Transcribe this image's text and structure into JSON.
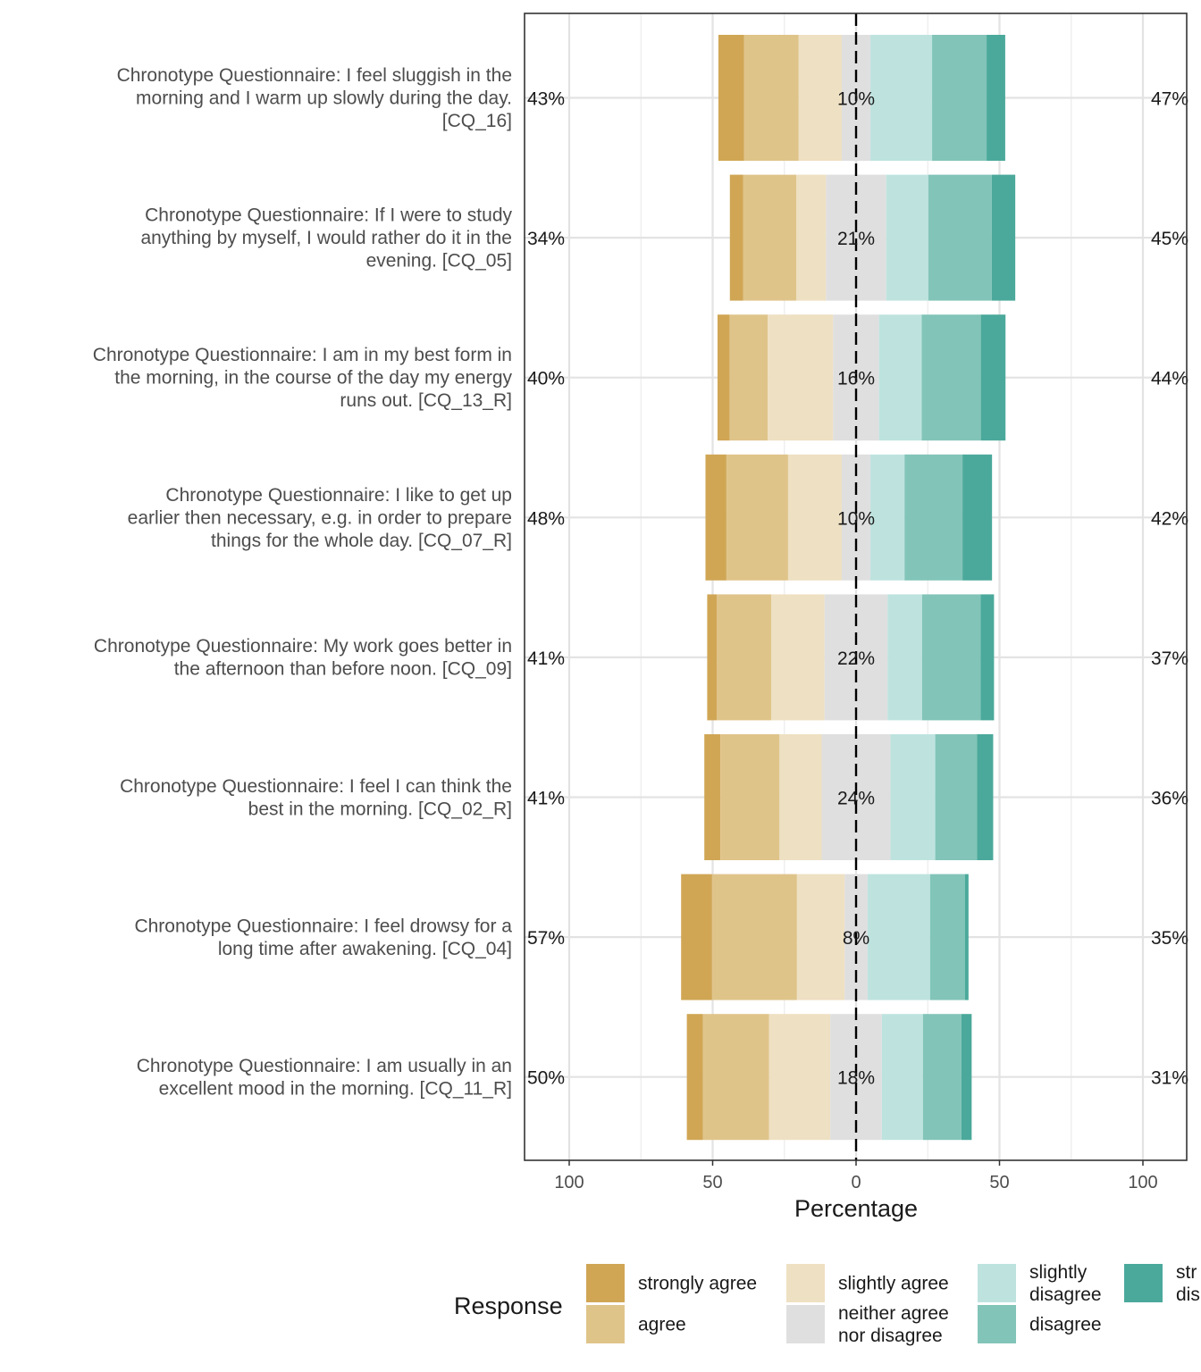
{
  "chart_data": {
    "type": "bar",
    "subtype": "diverging-stacked-likert",
    "xlabel": "Percentage",
    "xlim": [
      -100,
      100
    ],
    "xticks": [
      -100,
      -50,
      0,
      50,
      100
    ],
    "xtick_labels": [
      "100",
      "50",
      "0",
      "50",
      "100"
    ],
    "grid": true,
    "legend": {
      "title": "Response",
      "position": "bottom",
      "entries": [
        {
          "label": "strongly agree",
          "lines": [
            "strongly agree"
          ],
          "color": "#D0A655"
        },
        {
          "label": "agree",
          "lines": [
            "agree"
          ],
          "color": "#DFC48A"
        },
        {
          "label": "slightly agree",
          "lines": [
            "slightly agree"
          ],
          "color": "#EEE0C2"
        },
        {
          "label": "neither agree nor disagree",
          "lines": [
            "neither agree",
            "nor disagree"
          ],
          "color": "#DFDFDF"
        },
        {
          "label": "slightly disagree",
          "lines": [
            "slightly",
            "disagree"
          ],
          "color": "#BEE3DE"
        },
        {
          "label": "disagree",
          "lines": [
            "disagree"
          ],
          "color": "#82C4B8"
        },
        {
          "label": "strongly disagree",
          "lines": [
            "str",
            "dis"
          ],
          "color": "#4BA99B"
        }
      ]
    },
    "items": [
      {
        "label": [
          "Chronotype Questionnaire: I feel sluggish in the",
          "morning and I warm up slowly during the day.",
          "[CQ_16]"
        ],
        "values": [
          8.9,
          19.1,
          15.0,
          10.0,
          21.5,
          19.0,
          6.5
        ],
        "left_pct": "43%",
        "neutral_pct": "10%",
        "right_pct": "47%"
      },
      {
        "label": [
          "Chronotype Questionnaire: If I were to study",
          "anything by myself, I would rather do it in the",
          "evening. [CQ_05]"
        ],
        "values": [
          4.6,
          18.6,
          10.3,
          21.0,
          14.7,
          22.1,
          8.2
        ],
        "left_pct": "34%",
        "neutral_pct": "21%",
        "right_pct": "45%"
      },
      {
        "label": [
          "Chronotype Questionnaire: I am in my best form in",
          "the morning, in the course of the day my energy",
          "runs out. [CQ_13_R]"
        ],
        "values": [
          4.2,
          13.3,
          22.8,
          16.0,
          14.9,
          20.6,
          8.6
        ],
        "left_pct": "40%",
        "neutral_pct": "16%",
        "right_pct": "44%"
      },
      {
        "label": [
          "Chronotype Questionnaire: I like to get up",
          "earlier then necessary, e.g. in order to prepare",
          "things for the whole day. [CQ_07_R]"
        ],
        "values": [
          7.3,
          21.5,
          18.7,
          10.0,
          11.9,
          20.2,
          10.3
        ],
        "left_pct": "48%",
        "neutral_pct": "10%",
        "right_pct": "42%"
      },
      {
        "label": [
          "Chronotype Questionnaire: My work goes better in",
          "the afternoon than before noon. [CQ_09]"
        ],
        "values": [
          3.4,
          18.9,
          18.6,
          22.0,
          12.0,
          20.4,
          4.7
        ],
        "left_pct": "41%",
        "neutral_pct": "22%",
        "right_pct": "37%"
      },
      {
        "label": [
          "Chronotype Questionnaire: I feel I can think the",
          "best in the morning. [CQ_02_R]"
        ],
        "values": [
          5.6,
          20.6,
          14.7,
          24.0,
          15.6,
          14.6,
          5.6
        ],
        "left_pct": "41%",
        "neutral_pct": "24%",
        "right_pct": "36%"
      },
      {
        "label": [
          "Chronotype Questionnaire: I feel drowsy for a",
          "long time after awakening. [CQ_04]"
        ],
        "values": [
          10.8,
          29.6,
          16.6,
          8.0,
          21.8,
          12.2,
          1.2
        ],
        "left_pct": "57%",
        "neutral_pct": "8%",
        "right_pct": "35%"
      },
      {
        "label": [
          "Chronotype Questionnaire: I am usually in an",
          "excellent mood in the morning. [CQ_11_R]"
        ],
        "values": [
          5.6,
          23.1,
          21.3,
          18.0,
          14.3,
          13.4,
          3.6
        ],
        "left_pct": "50%",
        "neutral_pct": "18%",
        "right_pct": "31%"
      }
    ]
  }
}
